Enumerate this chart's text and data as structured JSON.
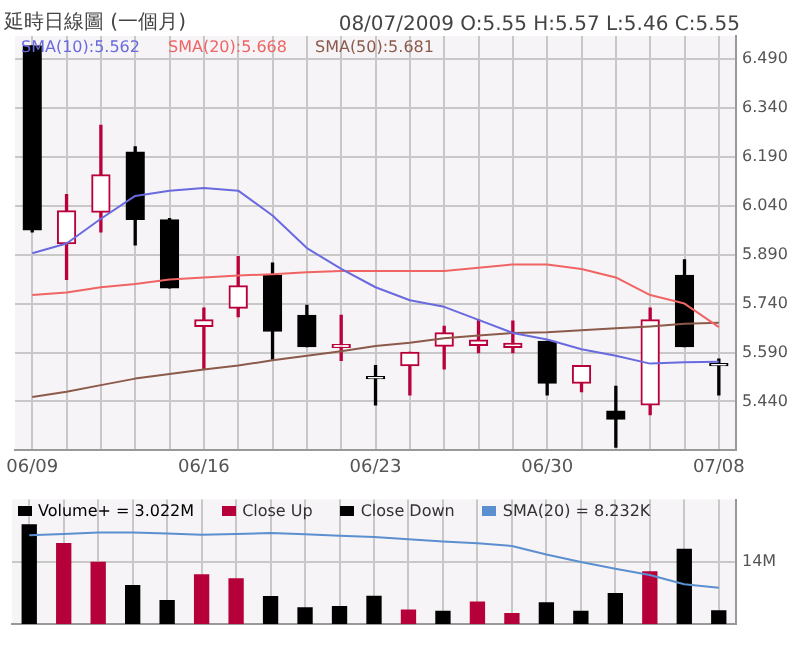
{
  "chart_data": [
    {
      "type": "candlestick",
      "subtitle": "延時日線圖 (一個月)",
      "annotations": [
        "08/07/2009 O:5.55 H:5.57 L:5.46 C:5.55"
      ],
      "categories": [
        "06/09",
        null,
        null,
        null,
        null,
        "06/16",
        null,
        null,
        null,
        null,
        "06/23",
        null,
        null,
        null,
        null,
        "06/30",
        null,
        null,
        null,
        null,
        "07/08"
      ],
      "ohlc": [
        [
          6.53,
          6.53,
          5.96,
          5.966
        ],
        [
          5.924,
          6.074,
          5.814,
          6.024
        ],
        [
          6.02,
          6.286,
          5.96,
          6.134
        ],
        [
          6.204,
          6.22,
          5.92,
          5.998
        ],
        [
          5.996,
          6.0,
          5.788,
          5.788
        ],
        [
          5.67,
          5.726,
          5.54,
          5.69
        ],
        [
          5.726,
          5.884,
          5.7,
          5.794
        ],
        [
          5.826,
          5.864,
          5.57,
          5.656
        ],
        [
          5.704,
          5.734,
          5.608,
          5.608
        ],
        [
          5.606,
          5.704,
          5.566,
          5.614
        ],
        [
          5.51,
          5.55,
          5.43,
          5.51
        ],
        [
          5.55,
          5.59,
          5.46,
          5.59
        ],
        [
          5.61,
          5.67,
          5.54,
          5.65
        ],
        [
          5.612,
          5.69,
          5.59,
          5.628
        ],
        [
          5.606,
          5.686,
          5.59,
          5.618
        ],
        [
          5.624,
          5.624,
          5.46,
          5.496
        ],
        [
          5.496,
          5.55,
          5.47,
          5.55
        ],
        [
          5.41,
          5.486,
          5.3,
          5.386
        ],
        [
          5.43,
          5.726,
          5.4,
          5.69
        ],
        [
          5.826,
          5.874,
          5.608,
          5.608
        ],
        [
          5.55,
          5.57,
          5.46,
          5.55
        ]
      ],
      "colors": [
        "#000000",
        "#b8003a",
        "#b8003a",
        "#000000",
        "#000000",
        "#b8003a",
        "#b8003a",
        "#000000",
        "#000000",
        "#b8003a",
        "#000000",
        "#b8003a",
        "#b8003a",
        "#b8003a",
        "#b8003a",
        "#000000",
        "#b8003a",
        "#000000",
        "#b8003a",
        "#000000",
        "#000000"
      ],
      "series": [
        {
          "name": "SMA(10):5.562",
          "type": "line",
          "color": "#6a6ae0",
          "values": [
            5.894,
            5.924,
            6.0,
            6.07,
            6.086,
            6.094,
            6.086,
            6.01,
            5.91,
            5.846,
            5.79,
            5.75,
            5.73,
            5.69,
            5.65,
            5.63,
            5.6,
            5.58,
            5.556,
            5.56,
            5.562
          ]
        },
        {
          "name": "SMA(20):5.668",
          "type": "line",
          "color": "#f06464",
          "values": [
            5.766,
            5.774,
            5.79,
            5.8,
            5.814,
            5.82,
            5.826,
            5.83,
            5.836,
            5.84,
            5.84,
            5.84,
            5.84,
            5.85,
            5.86,
            5.86,
            5.846,
            5.82,
            5.766,
            5.74,
            5.668
          ]
        },
        {
          "name": "SMA(50):5.681",
          "type": "line",
          "color": "#8c5a4a",
          "values": [
            5.454,
            5.47,
            5.49,
            5.51,
            5.524,
            5.538,
            5.55,
            5.566,
            5.58,
            5.594,
            5.61,
            5.62,
            5.634,
            5.642,
            5.65,
            5.652,
            5.658,
            5.664,
            5.67,
            5.678,
            5.681
          ]
        }
      ],
      "ylim": [
        5.29,
        6.56
      ],
      "yticks": [
        {
          "value": 6.49,
          "label": "6.490"
        },
        {
          "value": 6.34,
          "label": "6.340"
        },
        {
          "value": 6.19,
          "label": "6.190"
        },
        {
          "value": 6.04,
          "label": "6.040"
        },
        {
          "value": 5.89,
          "label": "5.890"
        },
        {
          "value": 5.74,
          "label": "5.740"
        },
        {
          "value": 5.59,
          "label": "5.590"
        },
        {
          "value": 5.44,
          "label": "5.440"
        }
      ],
      "grid": true,
      "legend": "top left",
      "marker": "none"
    },
    {
      "type": "bar",
      "annotations": [
        "Volume+ = 3.022M"
      ],
      "categories": [
        null,
        null,
        null,
        null,
        null,
        null,
        null,
        null,
        null,
        null,
        null,
        null,
        null,
        null,
        null,
        null,
        null,
        null,
        null,
        null,
        null
      ],
      "series": [
        {
          "name": "Close Up",
          "color": "#b5003a",
          "values": [
            null,
            18.1,
            13.9,
            null,
            null,
            11.1,
            10.2,
            null,
            null,
            null,
            null,
            3.2,
            null,
            5.0,
            2.4,
            null,
            null,
            null,
            11.8,
            null,
            null
          ]
        },
        {
          "name": "Close Down",
          "color": "#000000",
          "values": [
            22.3,
            null,
            null,
            8.7,
            5.3,
            null,
            null,
            6.2,
            3.7,
            4.0,
            6.3,
            null,
            2.9,
            null,
            null,
            4.8,
            2.9,
            6.9,
            null,
            16.8,
            3.0
          ]
        },
        {
          "name": "SMA(20) = 8.232K",
          "type": "line",
          "color": "#5b8fd0",
          "values": [
            20.0,
            20.3,
            20.6,
            20.6,
            20.4,
            20.1,
            20.3,
            20.5,
            20.2,
            19.9,
            19.6,
            19.1,
            18.6,
            18.2,
            17.6,
            15.7,
            14.0,
            12.5,
            11.1,
            9.0,
            8.2
          ]
        }
      ],
      "ylim": [
        0,
        28
      ],
      "yticks": [
        {
          "value": 0,
          "label": null
        },
        {
          "value": 14,
          "label": "14M"
        }
      ],
      "tick_labels": "y",
      "grid": true,
      "legend": "top left",
      "marker": "none"
    }
  ]
}
